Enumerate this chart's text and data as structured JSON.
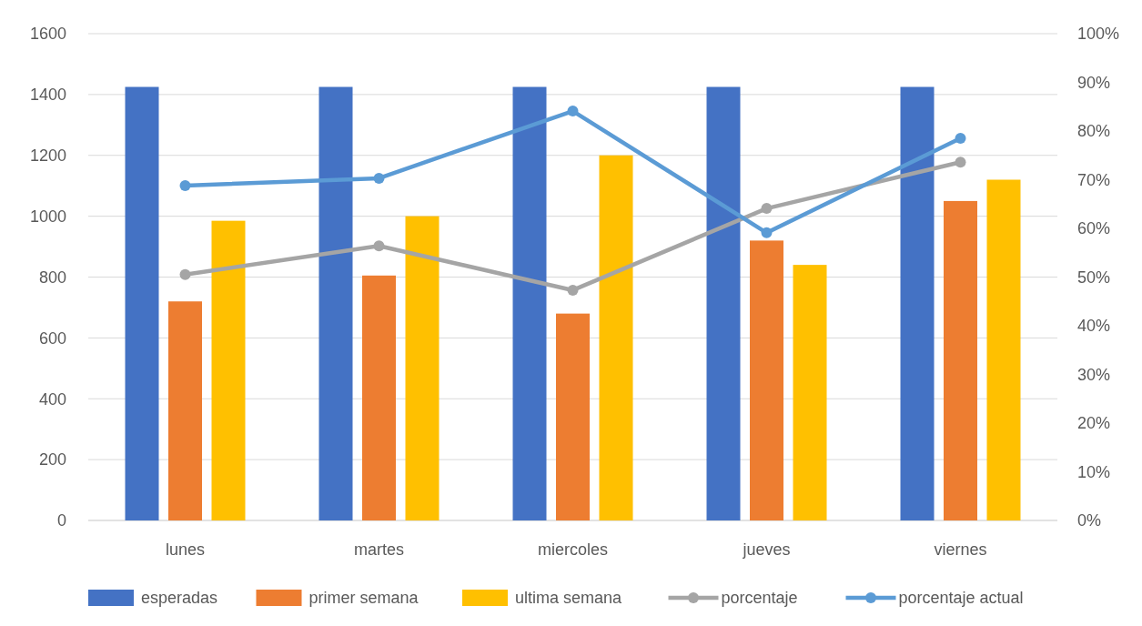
{
  "chart_data": {
    "type": "bar",
    "categories": [
      "lunes",
      "martes",
      "miercoles",
      "jueves",
      "viernes"
    ],
    "series": [
      {
        "name": "esperadas",
        "color": "#4472c4",
        "values": [
          1425,
          1425,
          1425,
          1425,
          1425
        ]
      },
      {
        "name": "primer semana",
        "color": "#ed7d31",
        "values": [
          720,
          805,
          680,
          920,
          1050
        ]
      },
      {
        "name": "ultima semana",
        "color": "#ffc000",
        "values": [
          985,
          1000,
          1200,
          840,
          1120
        ]
      },
      {
        "name": "porcentaje",
        "type": "line",
        "axis": "y2",
        "color": "#a5a5a5",
        "values": [
          50.5,
          56.4,
          47.3,
          64.1,
          73.6
        ]
      },
      {
        "name": "porcentaje actual",
        "type": "line",
        "axis": "y2",
        "color": "#5b9bd5",
        "values": [
          68.8,
          70.3,
          84.1,
          59.1,
          78.5
        ]
      }
    ],
    "ylim": [
      0,
      1600
    ],
    "yticks": [
      0,
      200,
      400,
      600,
      800,
      1000,
      1200,
      1400,
      1600
    ],
    "y2lim": [
      0,
      100
    ],
    "y2ticks": [
      {
        "value": 0,
        "label": "0%"
      },
      {
        "value": 10,
        "label": "10%"
      },
      {
        "value": 20,
        "label": "20%"
      },
      {
        "value": 30,
        "label": "30%"
      },
      {
        "value": 40,
        "label": "40%"
      },
      {
        "value": 50,
        "label": "50%"
      },
      {
        "value": 60,
        "label": "60%"
      },
      {
        "value": 70,
        "label": "70%"
      },
      {
        "value": 80,
        "label": "80%"
      },
      {
        "value": 90,
        "label": "90%"
      },
      {
        "value": 100,
        "label": "100%"
      }
    ],
    "grid": "y",
    "legend": "bottom",
    "marker": "circle",
    "line_style": "solid"
  }
}
